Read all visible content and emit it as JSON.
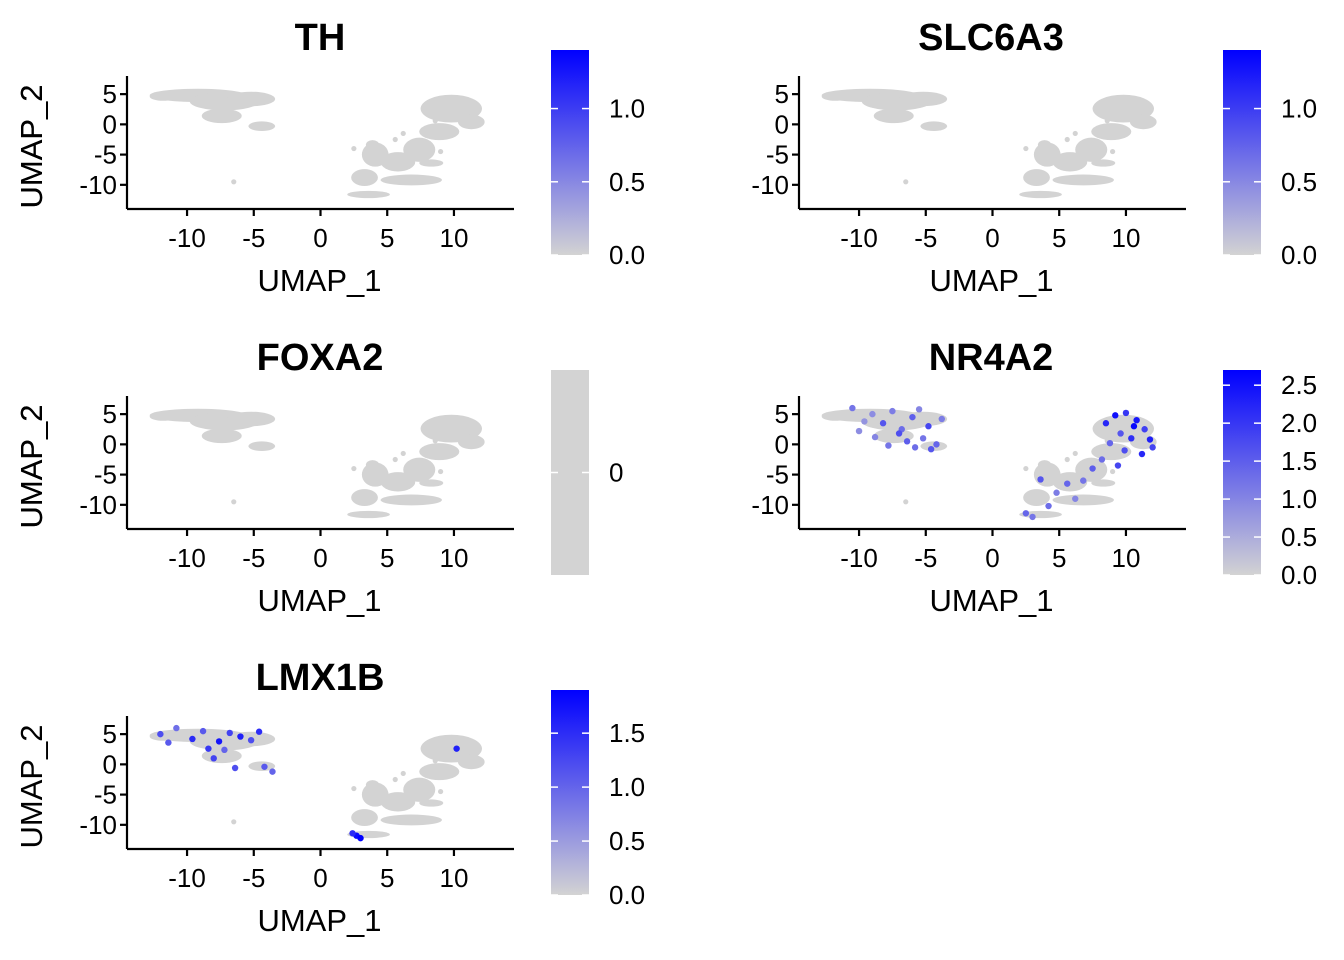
{
  "figure": {
    "point_color_low": "#D3D3D3",
    "point_color_high": "#0000FF",
    "background": "#FFFFFF"
  },
  "chart_data": [
    {
      "type": "scatter",
      "title": "TH",
      "xlabel": "UMAP_1",
      "ylabel": "UMAP_2",
      "xlim": [
        -14.5,
        14.5
      ],
      "ylim": [
        -14,
        8
      ],
      "xticks": [
        -10,
        -5,
        0,
        5,
        10
      ],
      "xtick_labels": [
        "-10",
        "-5",
        "0",
        "5",
        "10"
      ],
      "yticks": [
        5,
        0,
        -5,
        -10
      ],
      "ytick_labels": [
        "5",
        "0",
        "-5",
        "-10"
      ],
      "legend": {
        "position": "right",
        "min": 0,
        "max": 1.4,
        "ticks": [
          0,
          0.5,
          1.0
        ],
        "tick_labels": [
          "0.0",
          "0.5",
          "1.0"
        ]
      },
      "highlights": []
    },
    {
      "type": "scatter",
      "title": "SLC6A3",
      "xlabel": "UMAP_1",
      "ylabel": "UMAP_2",
      "xlim": [
        -14.5,
        14.5
      ],
      "ylim": [
        -14,
        8
      ],
      "xticks": [
        -10,
        -5,
        0,
        5,
        10
      ],
      "xtick_labels": [
        "-10",
        "-5",
        "0",
        "5",
        "10"
      ],
      "yticks": [
        5,
        0,
        -5,
        -10
      ],
      "ytick_labels": [
        "5",
        "0",
        "-5",
        "-10"
      ],
      "legend": {
        "position": "right",
        "min": 0,
        "max": 1.4,
        "ticks": [
          0,
          0.5,
          1.0
        ],
        "tick_labels": [
          "0.0",
          "0.5",
          "1.0"
        ]
      },
      "highlights": []
    },
    {
      "type": "scatter",
      "title": "FOXA2",
      "xlabel": "UMAP_1",
      "ylabel": "UMAP_2",
      "xlim": [
        -14.5,
        14.5
      ],
      "ylim": [
        -14,
        8
      ],
      "xticks": [
        -10,
        -5,
        0,
        5,
        10
      ],
      "xtick_labels": [
        "-10",
        "-5",
        "0",
        "5",
        "10"
      ],
      "yticks": [
        5,
        0,
        -5,
        -10
      ],
      "ytick_labels": [
        "5",
        "0",
        "-5",
        "-10"
      ],
      "legend": {
        "position": "right",
        "min": -1,
        "max": 1,
        "ticks": [
          0
        ],
        "tick_labels": [
          "0"
        ],
        "constant": true
      },
      "highlights": []
    },
    {
      "type": "scatter",
      "title": "NR4A2",
      "xlabel": "UMAP_1",
      "ylabel": "UMAP_2",
      "xlim": [
        -14.5,
        14.5
      ],
      "ylim": [
        -14,
        8
      ],
      "xticks": [
        -10,
        -5,
        0,
        5,
        10
      ],
      "xtick_labels": [
        "-10",
        "-5",
        "0",
        "5",
        "10"
      ],
      "yticks": [
        5,
        0,
        -5,
        -10
      ],
      "ytick_labels": [
        "5",
        "0",
        "-5",
        "-10"
      ],
      "legend": {
        "position": "right",
        "min": 0,
        "max": 2.7,
        "ticks": [
          0,
          0.5,
          1.0,
          1.5,
          2.0,
          2.5
        ],
        "tick_labels": [
          "0.0",
          "0.5",
          "1.0",
          "1.5",
          "2.0",
          "2.5"
        ]
      },
      "highlights": [
        [
          -10.5,
          6.0,
          1.2
        ],
        [
          -9.0,
          5.0,
          0.9
        ],
        [
          -8.2,
          3.5,
          1.6
        ],
        [
          -7.5,
          5.5,
          1.1
        ],
        [
          -6.8,
          2.5,
          1.3
        ],
        [
          -6.0,
          4.5,
          1.5
        ],
        [
          -5.5,
          5.8,
          1.0
        ],
        [
          -4.8,
          3.0,
          1.8
        ],
        [
          -5.2,
          1.0,
          1.2
        ],
        [
          -4.2,
          0.0,
          1.4
        ],
        [
          -8.8,
          1.2,
          1.0
        ],
        [
          -7.0,
          1.8,
          1.7
        ],
        [
          -9.6,
          3.8,
          0.8
        ],
        [
          -3.8,
          4.2,
          1.1
        ],
        [
          -6.4,
          0.5,
          1.5
        ],
        [
          -5.8,
          -0.5,
          1.3
        ],
        [
          -4.6,
          -0.8,
          1.6
        ],
        [
          -10.0,
          2.2,
          0.9
        ],
        [
          -7.8,
          -0.2,
          1.2
        ],
        [
          8.5,
          3.5,
          2.2
        ],
        [
          9.2,
          4.8,
          2.5
        ],
        [
          10.0,
          5.2,
          2.0
        ],
        [
          10.8,
          4.0,
          2.4
        ],
        [
          11.4,
          2.5,
          1.9
        ],
        [
          11.8,
          0.8,
          2.3
        ],
        [
          12.0,
          -0.5,
          1.8
        ],
        [
          9.6,
          1.8,
          1.6
        ],
        [
          10.4,
          1.0,
          2.1
        ],
        [
          8.8,
          0.2,
          1.4
        ],
        [
          9.9,
          -1.0,
          1.7
        ],
        [
          11.2,
          -1.6,
          2.2
        ],
        [
          8.2,
          -2.5,
          1.3
        ],
        [
          7.5,
          -4.0,
          1.5
        ],
        [
          6.8,
          -6.0,
          1.2
        ],
        [
          5.6,
          -6.5,
          1.4
        ],
        [
          4.8,
          -8.0,
          1.1
        ],
        [
          3.6,
          -5.8,
          1.6
        ],
        [
          4.2,
          -10.2,
          1.3
        ],
        [
          6.2,
          -9.0,
          1.0
        ],
        [
          3.0,
          -12.0,
          1.2
        ],
        [
          2.5,
          -11.4,
          1.4
        ],
        [
          9.4,
          -3.5,
          1.8
        ],
        [
          10.6,
          3.0,
          2.6
        ]
      ]
    },
    {
      "type": "scatter",
      "title": "LMX1B",
      "xlabel": "UMAP_1",
      "ylabel": "UMAP_2",
      "xlim": [
        -14.5,
        14.5
      ],
      "ylim": [
        -14,
        8
      ],
      "xticks": [
        -10,
        -5,
        0,
        5,
        10
      ],
      "xtick_labels": [
        "-10",
        "-5",
        "0",
        "5",
        "10"
      ],
      "yticks": [
        5,
        0,
        -5,
        -10
      ],
      "ytick_labels": [
        "5",
        "0",
        "-5",
        "-10"
      ],
      "legend": {
        "position": "right",
        "min": 0,
        "max": 1.9,
        "ticks": [
          0,
          0.5,
          1.0,
          1.5
        ],
        "tick_labels": [
          "0.0",
          "0.5",
          "1.0",
          "1.5"
        ]
      },
      "highlights": [
        [
          -12.0,
          5.0,
          1.2
        ],
        [
          -10.8,
          6.0,
          0.9
        ],
        [
          -9.6,
          4.2,
          1.5
        ],
        [
          -8.8,
          5.5,
          1.1
        ],
        [
          -7.6,
          3.8,
          1.7
        ],
        [
          -6.8,
          5.2,
          1.3
        ],
        [
          -6.0,
          4.6,
          1.6
        ],
        [
          -7.2,
          2.4,
          1.0
        ],
        [
          -8.4,
          2.6,
          1.4
        ],
        [
          -5.2,
          4.0,
          1.2
        ],
        [
          -11.4,
          3.6,
          1.1
        ],
        [
          -4.6,
          5.4,
          1.5
        ],
        [
          -8.0,
          1.0,
          1.3
        ],
        [
          -6.4,
          -0.6,
          1.2
        ],
        [
          -4.2,
          -0.4,
          1.1
        ],
        [
          -3.6,
          -1.2,
          1.0
        ],
        [
          10.2,
          2.6,
          1.6
        ],
        [
          2.7,
          -11.8,
          1.8
        ],
        [
          3.0,
          -12.2,
          1.9
        ],
        [
          2.4,
          -11.4,
          1.5
        ]
      ]
    }
  ]
}
